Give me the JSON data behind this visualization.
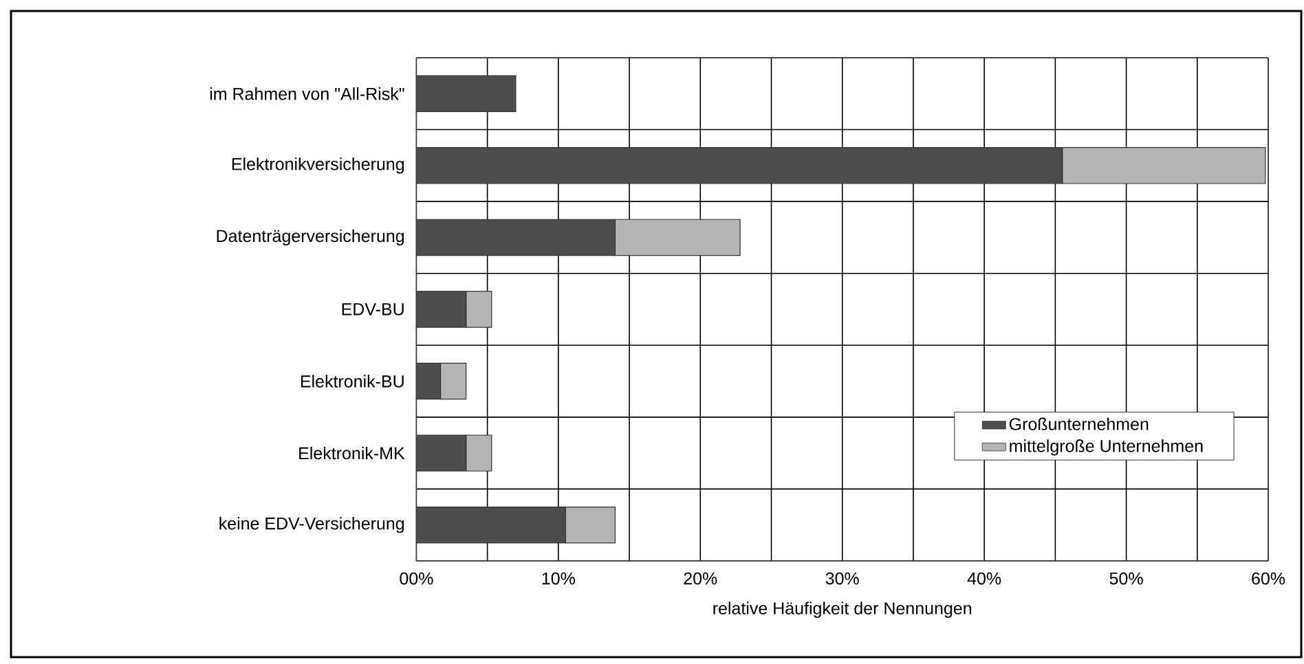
{
  "chart_data": {
    "type": "bar",
    "orientation": "horizontal",
    "stacked": true,
    "xlabel": "relative Häufigkeit der Nennungen",
    "categories": [
      "im Rahmen von \"All-Risk\"",
      "Elektronikversicherung",
      "Datenträgerversicherung",
      "EDV-BU",
      "Elektronik-BU",
      "Elektronik-MK",
      "keine EDV-Versicherung"
    ],
    "series": [
      {
        "name": "Großunternehmen",
        "color": "#4d4d4d",
        "values": [
          7,
          45.5,
          14,
          3.5,
          1.7,
          3.5,
          10.5
        ]
      },
      {
        "name": "mittelgroße Unternehmen",
        "color": "#b3b3b3",
        "values": [
          null,
          14.3,
          8.8,
          1.8,
          1.8,
          1.8,
          3.5
        ]
      }
    ],
    "xlim": [
      0,
      60
    ],
    "xticks": [
      {
        "value": 0,
        "label": "00%"
      },
      {
        "value": 5,
        "label": null
      },
      {
        "value": 10,
        "label": "10%"
      },
      {
        "value": 15,
        "label": null
      },
      {
        "value": 20,
        "label": "20%"
      },
      {
        "value": 25,
        "label": null
      },
      {
        "value": 30,
        "label": "30%"
      },
      {
        "value": 35,
        "label": null
      },
      {
        "value": 40,
        "label": "40%"
      },
      {
        "value": 45,
        "label": null
      },
      {
        "value": 50,
        "label": "50%"
      },
      {
        "value": 55,
        "label": null
      },
      {
        "value": 60,
        "label": "60%"
      }
    ],
    "grid": true,
    "legend": "right"
  }
}
